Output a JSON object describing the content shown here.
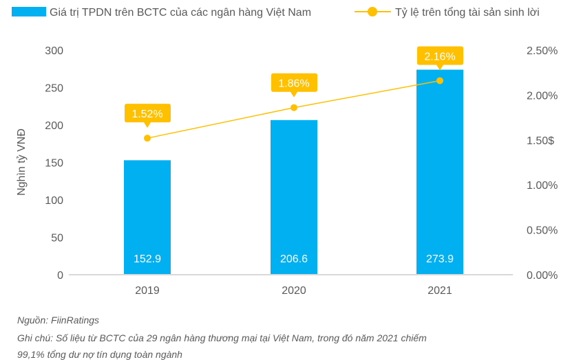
{
  "chart_data": {
    "type": "bar+line",
    "categories": [
      "2019",
      "2020",
      "2021"
    ],
    "series": [
      {
        "name": "Giá trị TPDN trên BCTC của các ngân hàng Việt Nam",
        "kind": "bar",
        "axis": "left",
        "values": [
          152.9,
          206.6,
          273.9
        ],
        "labels": [
          "152.9",
          "206.6",
          "273.9"
        ],
        "color": "#00b0f0"
      },
      {
        "name": "Tỷ lệ trên tổng tài sản sinh lời",
        "kind": "line",
        "axis": "right",
        "values": [
          1.52,
          1.86,
          2.16
        ],
        "labels": [
          "1.52%",
          "1.86%",
          "2.16%"
        ],
        "color": "#ffc000"
      }
    ],
    "ylabel": "Nghìn tỷ VNĐ",
    "ylim": [
      0,
      300
    ],
    "yticks": [
      "0",
      "50",
      "100",
      "150",
      "200",
      "250",
      "300"
    ],
    "y2lim": [
      0,
      2.5
    ],
    "y2ticks": [
      "0.00%",
      "0.50%",
      "1.00%",
      "1.50$",
      "2.00%",
      "2.50%"
    ],
    "legend_position": "top",
    "grid": false
  },
  "notes": {
    "source": "Nguồn: FiinRatings",
    "note_line1": "Ghi chú: Số liệu từ BCTC của 29 ngân hàng thương mại tại Việt Nam, trong đó năm 2021 chiếm",
    "note_line2": "99,1% tổng dư nợ tín dụng toàn ngành"
  }
}
